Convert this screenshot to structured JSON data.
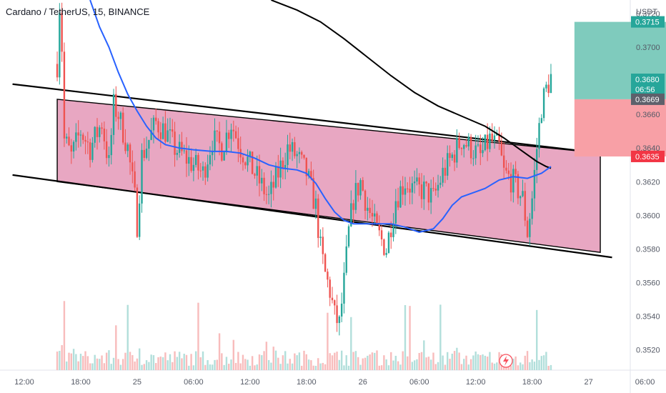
{
  "header": {
    "title": "Cardano / TetherUS, 15, BINANCE"
  },
  "price_axis": {
    "currency": "USDT"
  },
  "colors": {
    "up": "#26a69a",
    "down": "#ef5350",
    "vol_up": "#b2dfdb",
    "vol_down": "#f8bcbc",
    "channel_fill": "#e08aae",
    "ma_fast": "#2962ff",
    "ma_slow": "#000000",
    "target_zone": "#7fcbbd",
    "stop_zone": "#f8a0a6"
  },
  "chart_data": {
    "type": "candlestick",
    "symbol": "Cardano / TetherUS",
    "interval": "15",
    "exchange": "BINANCE",
    "ylim": [
      0.3508,
      0.3728
    ],
    "y_ticks": [
      0.372,
      0.37,
      0.368,
      0.366,
      0.364,
      0.362,
      0.36,
      0.358,
      0.356,
      0.354,
      0.352
    ],
    "x_ticks": [
      {
        "t": 0,
        "label": "12:00"
      },
      {
        "t": 24,
        "label": "18:00"
      },
      {
        "t": 48,
        "label": "25"
      },
      {
        "t": 72,
        "label": "06:00"
      },
      {
        "t": 96,
        "label": "12:00"
      },
      {
        "t": 120,
        "label": "18:00"
      },
      {
        "t": 144,
        "label": "26"
      },
      {
        "t": 168,
        "label": "06:00"
      },
      {
        "t": 192,
        "label": "12:00"
      },
      {
        "t": 216,
        "label": "18:00"
      },
      {
        "t": 240,
        "label": "27"
      },
      {
        "t": 264,
        "label": "06:00"
      }
    ],
    "price_path": [
      [
        14,
        0.369
      ],
      [
        15,
        0.3725
      ],
      [
        16,
        0.37
      ],
      [
        17,
        0.3645
      ],
      [
        20,
        0.3635
      ],
      [
        24,
        0.365
      ],
      [
        28,
        0.364
      ],
      [
        33,
        0.3655
      ],
      [
        36,
        0.363
      ],
      [
        38,
        0.3665
      ],
      [
        40,
        0.366
      ],
      [
        44,
        0.364
      ],
      [
        47,
        0.361
      ],
      [
        48,
        0.3595
      ],
      [
        50,
        0.3635
      ],
      [
        53,
        0.3645
      ],
      [
        56,
        0.3655
      ],
      [
        60,
        0.365
      ],
      [
        64,
        0.364
      ],
      [
        68,
        0.3635
      ],
      [
        72,
        0.363
      ],
      [
        76,
        0.3625
      ],
      [
        80,
        0.3645
      ],
      [
        84,
        0.364
      ],
      [
        88,
        0.3655
      ],
      [
        92,
        0.364
      ],
      [
        96,
        0.363
      ],
      [
        100,
        0.362
      ],
      [
        104,
        0.361
      ],
      [
        108,
        0.3625
      ],
      [
        112,
        0.364
      ],
      [
        116,
        0.3635
      ],
      [
        120,
        0.3625
      ],
      [
        124,
        0.3605
      ],
      [
        126,
        0.358
      ],
      [
        128,
        0.3565
      ],
      [
        130,
        0.3555
      ],
      [
        132,
        0.354
      ],
      [
        134,
        0.3535
      ],
      [
        136,
        0.356
      ],
      [
        138,
        0.359
      ],
      [
        140,
        0.361
      ],
      [
        143,
        0.362
      ],
      [
        146,
        0.3605
      ],
      [
        150,
        0.359
      ],
      [
        154,
        0.358
      ],
      [
        158,
        0.361
      ],
      [
        162,
        0.362
      ],
      [
        166,
        0.3615
      ],
      [
        170,
        0.3615
      ],
      [
        174,
        0.361
      ],
      [
        178,
        0.3625
      ],
      [
        182,
        0.3635
      ],
      [
        186,
        0.3645
      ],
      [
        190,
        0.364
      ],
      [
        194,
        0.3635
      ],
      [
        198,
        0.3645
      ],
      [
        202,
        0.364
      ],
      [
        204,
        0.3625
      ],
      [
        208,
        0.362
      ],
      [
        212,
        0.361
      ],
      [
        214,
        0.359
      ],
      [
        216,
        0.361
      ],
      [
        218,
        0.364
      ],
      [
        220,
        0.3665
      ],
      [
        222,
        0.3675
      ],
      [
        224,
        0.3682
      ]
    ],
    "ma_fast": [
      [
        28,
        0.3728
      ],
      [
        32,
        0.3712
      ],
      [
        36,
        0.37
      ],
      [
        40,
        0.3685
      ],
      [
        44,
        0.3672
      ],
      [
        48,
        0.3662
      ],
      [
        52,
        0.3653
      ],
      [
        56,
        0.3646
      ],
      [
        60,
        0.3642
      ],
      [
        66,
        0.364
      ],
      [
        72,
        0.3639
      ],
      [
        80,
        0.3638
      ],
      [
        86,
        0.3638
      ],
      [
        92,
        0.3637
      ],
      [
        98,
        0.3634
      ],
      [
        104,
        0.363
      ],
      [
        110,
        0.3628
      ],
      [
        116,
        0.3627
      ],
      [
        120,
        0.3625
      ],
      [
        124,
        0.3619
      ],
      [
        128,
        0.361
      ],
      [
        132,
        0.3602
      ],
      [
        136,
        0.3597
      ],
      [
        140,
        0.3595
      ],
      [
        148,
        0.3595
      ],
      [
        156,
        0.3595
      ],
      [
        162,
        0.3593
      ],
      [
        168,
        0.359
      ],
      [
        174,
        0.3592
      ],
      [
        178,
        0.3598
      ],
      [
        182,
        0.3606
      ],
      [
        186,
        0.3611
      ],
      [
        190,
        0.3613
      ],
      [
        196,
        0.3616
      ],
      [
        202,
        0.3621
      ],
      [
        208,
        0.3623
      ],
      [
        214,
        0.3622
      ],
      [
        220,
        0.3625
      ],
      [
        224,
        0.3629
      ]
    ],
    "ma_slow": [
      [
        105,
        0.3728
      ],
      [
        116,
        0.3722
      ],
      [
        126,
        0.3715
      ],
      [
        136,
        0.3705
      ],
      [
        146,
        0.3694
      ],
      [
        156,
        0.3683
      ],
      [
        166,
        0.3673
      ],
      [
        176,
        0.3665
      ],
      [
        186,
        0.3659
      ],
      [
        196,
        0.3653
      ],
      [
        204,
        0.3646
      ],
      [
        212,
        0.3638
      ],
      [
        218,
        0.3632
      ],
      [
        222,
        0.3629
      ],
      [
        224,
        0.3628
      ]
    ],
    "channel": {
      "upper": [
        [
          14,
          0.3669
        ],
        [
          245,
          0.3637
        ]
      ],
      "lower": [
        [
          14,
          0.362
        ],
        [
          245,
          0.3578
        ]
      ],
      "upper_extension": [
        [
          -5,
          0.3678
        ],
        [
          0,
          0.3677
        ]
      ],
      "lower_extension": [
        [
          -5,
          0.3624
        ],
        [
          250,
          0.3575
        ]
      ]
    },
    "position": {
      "t_start": 234,
      "t_end": 275,
      "entry": 0.3669,
      "target": 0.3715,
      "stop": 0.3635
    },
    "price_labels": [
      {
        "value": 0.3715,
        "text": "0.3715",
        "kind": "target"
      },
      {
        "value": 0.368,
        "text": "0.3680",
        "sub": "06:56",
        "kind": "last"
      },
      {
        "value": 0.3669,
        "text": "0.3669",
        "kind": "entry"
      },
      {
        "value": 0.3635,
        "text": "0.3635",
        "kind": "stop"
      }
    ],
    "legend": "none",
    "grid": false
  }
}
